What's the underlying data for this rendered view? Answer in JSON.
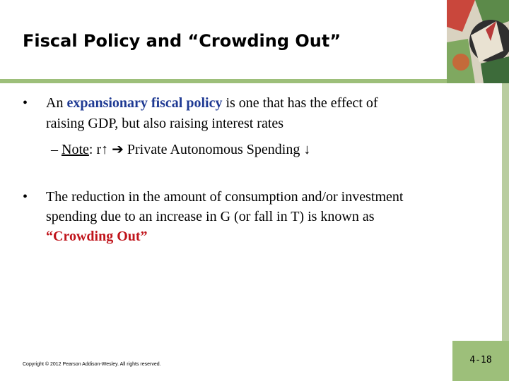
{
  "slide": {
    "title": "Fiscal Policy and “Crowding Out”",
    "bullet1": {
      "marker": "•",
      "pre": "An ",
      "highlight": "expansionary fiscal policy",
      "post": " is one that has the effect of",
      "line2": "raising GDP, but also raising interest rates"
    },
    "sub1": {
      "dash": "–",
      "note_label": "Note",
      "colon": ":",
      "r": "r",
      "up_arrow": "↑",
      "implies_arrow": "➔",
      "text": "Private Autonomous Spending",
      "down_arrow": "↓"
    },
    "bullet2": {
      "marker": "•",
      "line1": "The reduction in the amount of consumption and/or investment",
      "line2": "spending due to an increase in G (or fall in T) is known as",
      "line3": "“Crowding Out”"
    },
    "footer": {
      "copyright": "Copyright © 2012 Pearson Addison-Wesley. All rights reserved.",
      "page": "4-18"
    },
    "colors": {
      "accent_green": "#9dbf7a",
      "highlight_blue": "#1f3a93",
      "highlight_red": "#c0141b"
    }
  }
}
